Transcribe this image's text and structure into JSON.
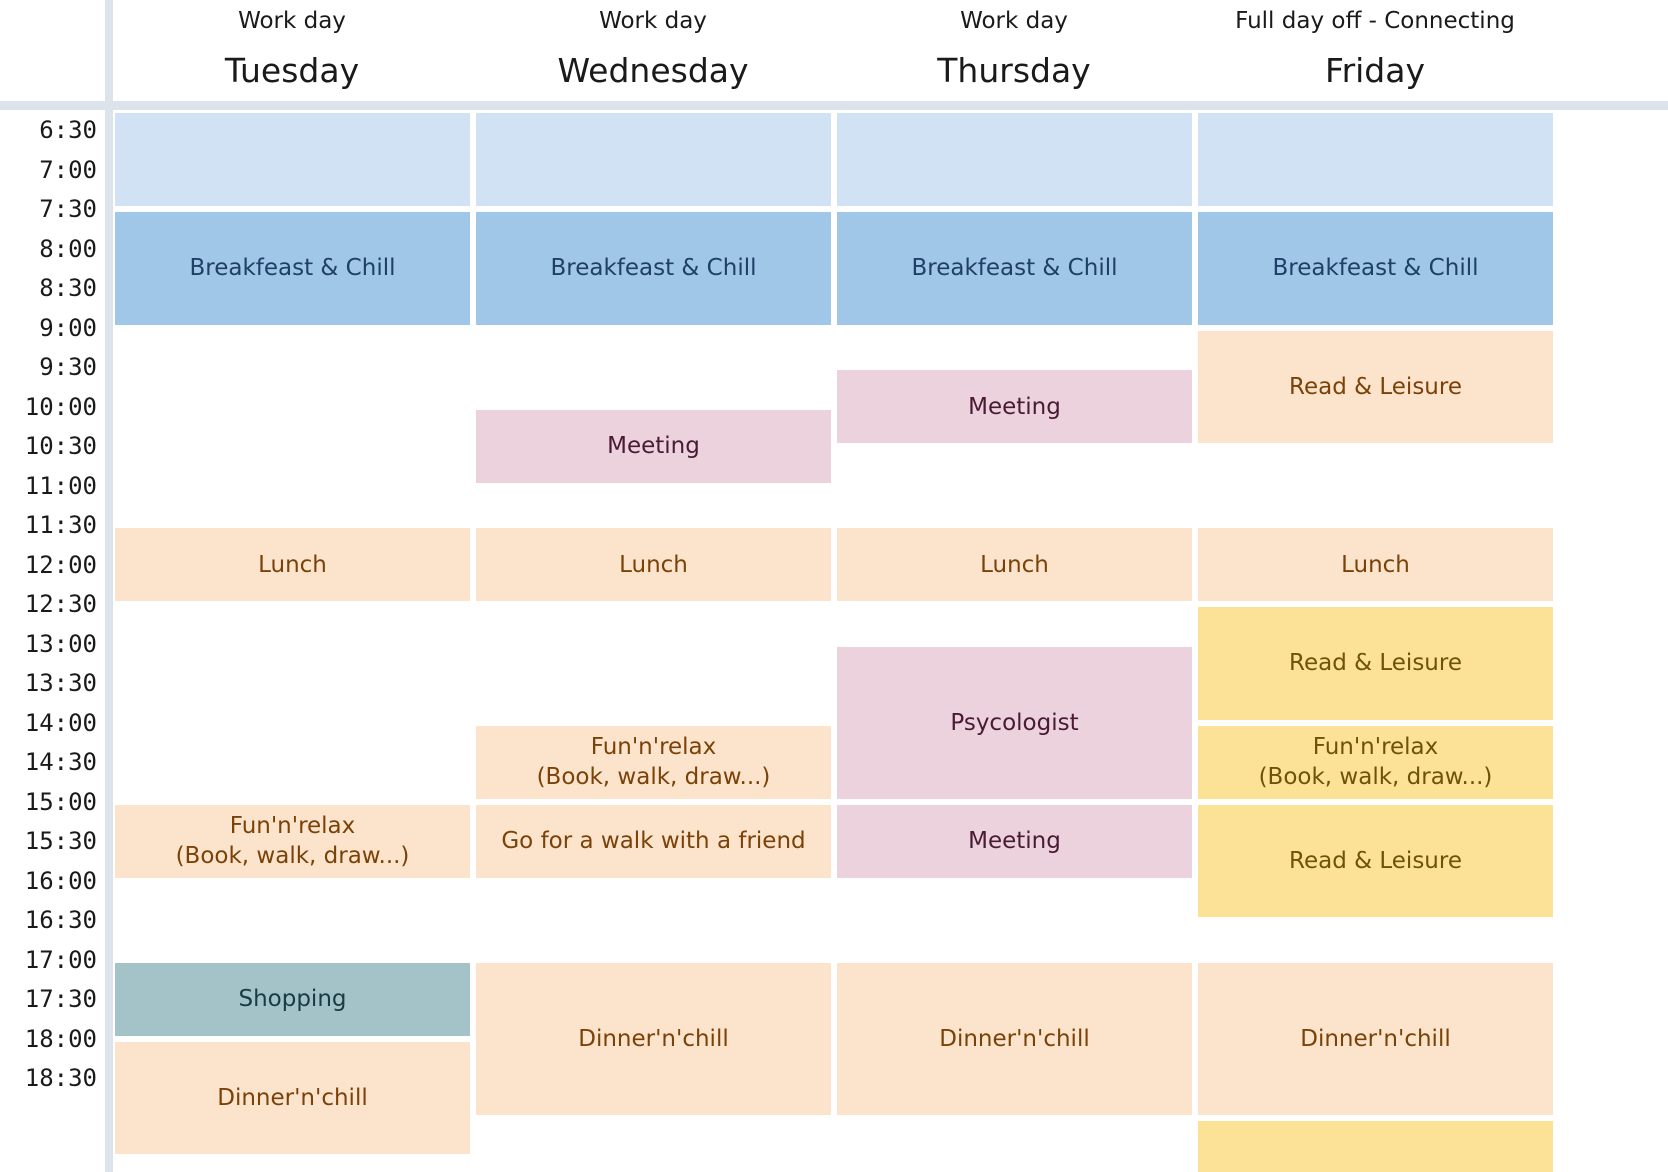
{
  "days": [
    {
      "subtitle": "Work day",
      "name": "Tuesday"
    },
    {
      "subtitle": "Work day",
      "name": "Wednesday"
    },
    {
      "subtitle": "Work day",
      "name": "Thursday"
    },
    {
      "subtitle": "Full day off - Connecting",
      "name": "Friday"
    }
  ],
  "times": [
    "6:30",
    "7:00",
    "7:30",
    "8:00",
    "8:30",
    "9:00",
    "9:30",
    "10:00",
    "10:30",
    "11:00",
    "11:30",
    "12:00",
    "12:30",
    "13:00",
    "13:30",
    "14:00",
    "14:30",
    "15:00",
    "15:30",
    "16:00",
    "16:30",
    "17:00",
    "17:30",
    "18:00",
    "18:30"
  ],
  "colors": {
    "early": "#d0e2f4",
    "breakfast": "#a0c6e8",
    "breakfast_text": "#1f3f66",
    "meeting": "#ebd2dd",
    "meeting_text": "#4a1a35",
    "warm": "#fce4cc",
    "warm_text": "#7a4208",
    "yellow": "#fce296",
    "yellow_text": "#6e5208",
    "shopping": "#a4c3c9",
    "shopping_text": "#173c45"
  },
  "events": [
    {
      "day": 0,
      "start": "6:15",
      "end": "7:30",
      "label": "",
      "kind": "early"
    },
    {
      "day": 1,
      "start": "6:15",
      "end": "7:30",
      "label": "",
      "kind": "early"
    },
    {
      "day": 2,
      "start": "6:15",
      "end": "7:30",
      "label": "",
      "kind": "early"
    },
    {
      "day": 3,
      "start": "6:15",
      "end": "7:30",
      "label": "",
      "kind": "early"
    },
    {
      "day": 0,
      "start": "7:30",
      "end": "9:00",
      "label": "Breakfeast & Chill",
      "kind": "breakfast"
    },
    {
      "day": 1,
      "start": "7:30",
      "end": "9:00",
      "label": "Breakfeast & Chill",
      "kind": "breakfast"
    },
    {
      "day": 2,
      "start": "7:30",
      "end": "9:00",
      "label": "Breakfeast & Chill",
      "kind": "breakfast"
    },
    {
      "day": 3,
      "start": "7:30",
      "end": "9:00",
      "label": "Breakfeast & Chill",
      "kind": "breakfast"
    },
    {
      "day": 1,
      "start": "10:00",
      "end": "11:00",
      "label": "Meeting",
      "kind": "meeting"
    },
    {
      "day": 2,
      "start": "9:30",
      "end": "10:30",
      "label": "Meeting",
      "kind": "meeting"
    },
    {
      "day": 3,
      "start": "9:00",
      "end": "10:30",
      "label": "Read & Leisure",
      "kind": "warm"
    },
    {
      "day": 0,
      "start": "11:30",
      "end": "12:30",
      "label": "Lunch",
      "kind": "warm"
    },
    {
      "day": 1,
      "start": "11:30",
      "end": "12:30",
      "label": "Lunch",
      "kind": "warm"
    },
    {
      "day": 2,
      "start": "11:30",
      "end": "12:30",
      "label": "Lunch",
      "kind": "warm"
    },
    {
      "day": 3,
      "start": "11:30",
      "end": "12:30",
      "label": "Lunch",
      "kind": "warm"
    },
    {
      "day": 2,
      "start": "13:00",
      "end": "15:00",
      "label": "Psycologist",
      "kind": "meeting"
    },
    {
      "day": 3,
      "start": "12:30",
      "end": "14:00",
      "label": "Read & Leisure",
      "kind": "yellow"
    },
    {
      "day": 1,
      "start": "14:00",
      "end": "15:00",
      "label": "Fun'n'relax\n(Book, walk, draw...)",
      "kind": "warm"
    },
    {
      "day": 3,
      "start": "14:00",
      "end": "15:00",
      "label": "Fun'n'relax\n(Book, walk, draw...)",
      "kind": "yellow"
    },
    {
      "day": 0,
      "start": "15:00",
      "end": "16:00",
      "label": "Fun'n'relax\n(Book, walk, draw...)",
      "kind": "warm"
    },
    {
      "day": 1,
      "start": "15:00",
      "end": "16:00",
      "label": "Go for a walk with a friend",
      "kind": "warm"
    },
    {
      "day": 2,
      "start": "15:00",
      "end": "16:00",
      "label": "Meeting",
      "kind": "meeting"
    },
    {
      "day": 3,
      "start": "15:00",
      "end": "16:30",
      "label": "Read & Leisure",
      "kind": "yellow"
    },
    {
      "day": 0,
      "start": "17:00",
      "end": "18:00",
      "label": "Shopping",
      "kind": "shopping"
    },
    {
      "day": 0,
      "start": "18:00",
      "end": "19:30",
      "label": "Dinner'n'chill",
      "kind": "warm"
    },
    {
      "day": 1,
      "start": "17:00",
      "end": "19:00",
      "label": "Dinner'n'chill",
      "kind": "warm"
    },
    {
      "day": 2,
      "start": "17:00",
      "end": "19:00",
      "label": "Dinner'n'chill",
      "kind": "warm"
    },
    {
      "day": 3,
      "start": "17:00",
      "end": "19:00",
      "label": "Dinner'n'chill",
      "kind": "warm"
    },
    {
      "day": 3,
      "start": "19:00",
      "end": "20:00",
      "label": "",
      "kind": "yellow"
    }
  ]
}
